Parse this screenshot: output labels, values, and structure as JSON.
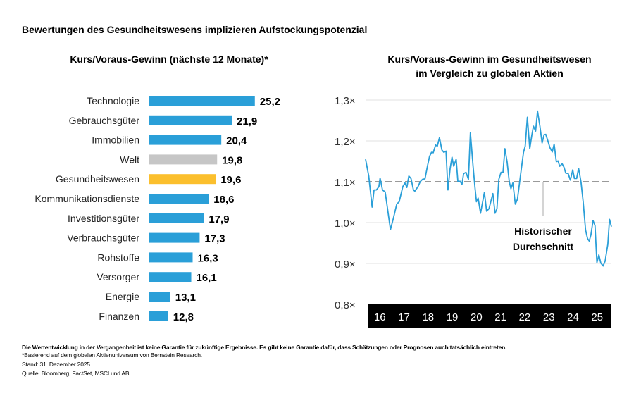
{
  "title": "Bewertungen des Gesundheitswesens implizieren Aufstockungspotenzial",
  "colors": {
    "bar": "#2a9fd8",
    "world": "#c6c6c6",
    "healthcare": "#fbbf2d",
    "line": "#2a9fd8",
    "average": "#9a9a9a",
    "axis_band": "#000000"
  },
  "footnotes": [
    "Die Wertentwicklung in der Vergangenheit ist keine Garantie für zukünftige Ergebnisse. Es gibt keine Garantie dafür, dass Schätzungen oder Prognosen auch tatsächlich eintreten.",
    "*Basierend auf dem globalen Aktienuniversum von Bernstein Research.",
    "Stand: 31. Dezember 2025",
    "Quelle: Bloomberg, FactSet, MSCI und AB"
  ],
  "chart_data": [
    {
      "type": "bar",
      "orientation": "horizontal",
      "title": "Kurs/Voraus-Gewinn (nächste 12 Monate)*",
      "categories": [
        "Technologie",
        "Gebrauchsgüter",
        "Immobilien",
        "Welt",
        "Gesundheitswesen",
        "Kommunikationsdienste",
        "Investitionsgüter",
        "Verbrauchsgüter",
        "Rohstoffe",
        "Versorger",
        "Energie",
        "Finanzen"
      ],
      "values": [
        25.2,
        21.9,
        20.4,
        19.8,
        19.6,
        18.6,
        17.9,
        17.3,
        16.3,
        16.1,
        13.1,
        12.8
      ],
      "value_labels": [
        "25,2",
        "21,9",
        "20,4",
        "19,8",
        "19,6",
        "18,6",
        "17,9",
        "17,3",
        "16,3",
        "16,1",
        "13,1",
        "12,8"
      ],
      "highlight": {
        "Welt": "world",
        "Gesundheitswesen": "healthcare"
      },
      "xlim": [
        10,
        26
      ]
    },
    {
      "type": "line",
      "title": "Kurs/Voraus-Gewinn im Gesundheitswesen im Vergleich zu globalen Aktien",
      "title_lines": [
        "Kurs/Voraus-Gewinn im Gesundheitswesen",
        "im Vergleich zu globalen Aktien"
      ],
      "ylim": [
        0.8,
        1.3
      ],
      "yticks": [
        1.3,
        1.2,
        1.1,
        1.0,
        0.9,
        0.8
      ],
      "ytick_labels": [
        "1,3×",
        "1,2×",
        "1,1×",
        "1,0×",
        "0,9×",
        "0,8×"
      ],
      "xlim": [
        2015.91,
        2026.09
      ],
      "xtick_labels": [
        "16",
        "17",
        "18",
        "19",
        "20",
        "21",
        "22",
        "23",
        "24",
        "25"
      ],
      "grid": true,
      "average": {
        "value": 1.1,
        "label_lines": [
          "Historischer",
          "Durchschnitt"
        ]
      },
      "x": [
        2015.91,
        2016.04,
        2016.18,
        2016.26,
        2016.36,
        2016.46,
        2016.51,
        2016.61,
        2016.72,
        2016.84,
        2016.94,
        2017.06,
        2017.2,
        2017.3,
        2017.45,
        2017.54,
        2017.62,
        2017.7,
        2017.79,
        2017.89,
        2017.95,
        2018.08,
        2018.17,
        2018.27,
        2018.37,
        2018.47,
        2018.56,
        2018.64,
        2018.71,
        2018.81,
        2018.88,
        2018.97,
        2019.07,
        2019.15,
        2019.24,
        2019.32,
        2019.41,
        2019.49,
        2019.56,
        2019.66,
        2019.73,
        2019.83,
        2019.9,
        2019.97,
        2020.07,
        2020.17,
        2020.25,
        2020.36,
        2020.44,
        2020.5,
        2020.57,
        2020.67,
        2020.83,
        2020.92,
        2021.02,
        2021.18,
        2021.27,
        2021.35,
        2021.43,
        2021.52,
        2021.6,
        2021.68,
        2021.77,
        2021.86,
        2021.93,
        2022.01,
        2022.11,
        2022.2,
        2022.32,
        2022.45,
        2022.52,
        2022.61,
        2022.71,
        2022.79,
        2022.86,
        2022.95,
        2023.03,
        2023.13,
        2023.22,
        2023.3,
        2023.37,
        2023.47,
        2023.54,
        2023.64,
        2023.72,
        2023.81,
        2023.88,
        2023.95,
        2024.05,
        2024.13,
        2024.2,
        2024.3,
        2024.39,
        2024.49,
        2024.56,
        2024.65,
        2024.73,
        2024.83,
        2024.92,
        2025.02,
        2025.1,
        2025.17,
        2025.24,
        2025.33,
        2025.41,
        2025.49,
        2025.57,
        2025.65,
        2025.75,
        2025.83,
        2025.94,
        2026.01,
        2026.09
      ],
      "y": [
        1.155,
        1.114,
        1.038,
        1.08,
        1.08,
        1.088,
        1.109,
        1.08,
        1.075,
        1.025,
        0.983,
        1.01,
        1.045,
        1.051,
        1.088,
        1.097,
        1.086,
        1.114,
        1.108,
        1.08,
        1.077,
        1.088,
        1.1,
        1.106,
        1.107,
        1.138,
        1.162,
        1.172,
        1.171,
        1.19,
        1.187,
        1.208,
        1.178,
        1.172,
        1.175,
        1.08,
        1.132,
        1.16,
        1.138,
        1.155,
        1.101,
        1.101,
        1.093,
        1.12,
        1.123,
        1.106,
        1.22,
        1.138,
        1.086,
        1.051,
        1.06,
        1.023,
        1.074,
        1.028,
        1.034,
        1.071,
        1.023,
        1.034,
        1.106,
        1.123,
        1.123,
        1.181,
        1.149,
        1.1,
        1.083,
        1.097,
        1.045,
        1.057,
        1.114,
        1.172,
        1.187,
        1.258,
        1.181,
        1.213,
        1.236,
        1.224,
        1.273,
        1.236,
        1.195,
        1.215,
        1.216,
        1.198,
        1.184,
        1.173,
        1.192,
        1.149,
        1.151,
        1.138,
        1.144,
        1.135,
        1.121,
        1.12,
        1.104,
        1.129,
        1.108,
        1.108,
        1.133,
        1.1,
        1.051,
        0.982,
        0.961,
        0.955,
        0.97,
        1.005,
        0.993,
        0.902,
        0.921,
        0.901,
        0.894,
        0.906,
        0.947,
        1.008,
        0.99
      ]
    }
  ]
}
